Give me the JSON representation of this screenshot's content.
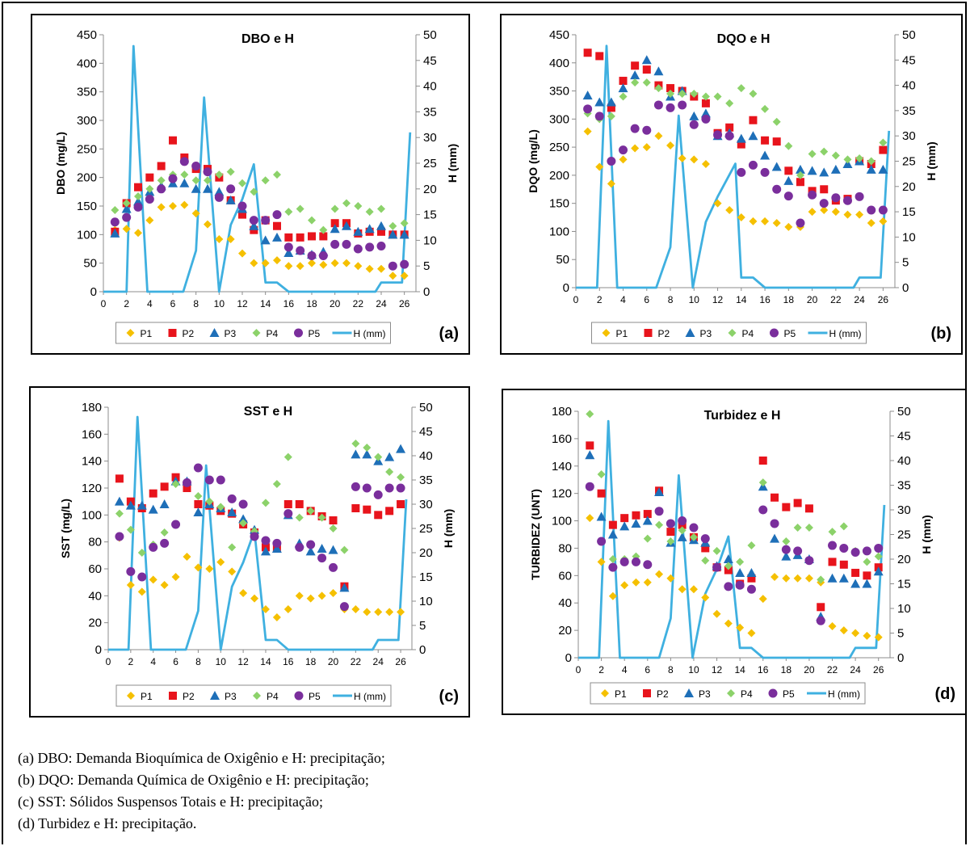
{
  "colors": {
    "P1": "#f5c000",
    "P2": "#e8141c",
    "P3": "#1e6fb8",
    "P4": "#8cd26a",
    "P5": "#7a2e9c",
    "H": "#3fb0e0"
  },
  "legend": [
    "P1",
    "P2",
    "P3",
    "P4",
    "P5",
    "H (mm)"
  ],
  "captions": [
    "(a) DBO: Demanda Bioquímica de Oxigênio e H: precipitação;",
    "(b) DQO: Demanda Química de Oxigênio e H: precipitação;",
    "(c) SST: Sólidos Suspensos Totais e H: precipitação;",
    "(d) Turbidez e H: precipitação."
  ],
  "chart_data": [
    {
      "type": "scatter",
      "panel_label": "(a)",
      "title": "DBO e H",
      "ylabel": "DBO (mg/L)",
      "y2label": "H (mm)",
      "xlim": [
        0,
        27
      ],
      "xticks": [
        0,
        2,
        4,
        6,
        8,
        10,
        12,
        14,
        16,
        18,
        20,
        22,
        24,
        26
      ],
      "ylim": [
        0,
        450
      ],
      "yticks": [
        0,
        50,
        100,
        150,
        200,
        250,
        300,
        350,
        400,
        450
      ],
      "y2lim": [
        0,
        50
      ],
      "y2ticks": [
        0,
        5,
        10,
        15,
        20,
        25,
        30,
        35,
        40,
        45,
        50
      ],
      "x": [
        1,
        2,
        3,
        4,
        5,
        6,
        7,
        8,
        9,
        10,
        11,
        12,
        13,
        14,
        15,
        16,
        17,
        18,
        19,
        20,
        21,
        22,
        23,
        24,
        25,
        26
      ],
      "series": [
        {
          "name": "P1",
          "values": [
            108,
            110,
            103,
            125,
            148,
            150,
            152,
            137,
            118,
            92,
            92,
            67,
            50,
            50,
            55,
            45,
            45,
            50,
            47,
            50,
            50,
            45,
            40,
            40,
            28,
            28
          ]
        },
        {
          "name": "P2",
          "values": [
            105,
            155,
            183,
            200,
            220,
            265,
            235,
            215,
            215,
            200,
            160,
            135,
            108,
            125,
            115,
            95,
            95,
            97,
            97,
            120,
            120,
            102,
            105,
            105,
            100,
            100
          ]
        },
        {
          "name": "P3",
          "values": [
            102,
            145,
            158,
            175,
            185,
            190,
            190,
            180,
            180,
            175,
            160,
            145,
            115,
            90,
            95,
            68,
            72,
            65,
            70,
            110,
            115,
            105,
            110,
            115,
            100,
            100
          ]
        },
        {
          "name": "P4",
          "values": [
            143,
            155,
            167,
            180,
            195,
            205,
            205,
            195,
            195,
            205,
            210,
            190,
            175,
            195,
            205,
            140,
            145,
            125,
            108,
            145,
            155,
            150,
            140,
            145,
            115,
            120
          ]
        },
        {
          "name": "P5",
          "values": [
            122,
            130,
            148,
            162,
            180,
            198,
            228,
            220,
            210,
            165,
            180,
            150,
            125,
            125,
            135,
            78,
            72,
            63,
            63,
            83,
            83,
            75,
            78,
            80,
            45,
            48
          ]
        }
      ],
      "h_series": {
        "name": "H (mm)",
        "x": [
          0,
          2,
          2.6,
          3.8,
          6.9,
          8.0,
          8.7,
          10,
          11,
          12,
          13,
          14,
          15,
          16,
          23.5,
          24,
          25,
          25.8,
          26.5
        ],
        "values": [
          0,
          0,
          47.8,
          0,
          0,
          8,
          37.8,
          0,
          13,
          18,
          24.8,
          1.8,
          1.8,
          0,
          0,
          1.8,
          1.8,
          1.8,
          31
        ]
      }
    },
    {
      "type": "scatter",
      "panel_label": "(b)",
      "title": "DQO e H",
      "ylabel": "DQO (mg/L)",
      "y2label": "H (mm)",
      "xlim": [
        0,
        27
      ],
      "xticks": [
        0,
        2,
        4,
        6,
        8,
        10,
        12,
        14,
        16,
        18,
        20,
        22,
        24,
        26
      ],
      "ylim": [
        0,
        450
      ],
      "yticks": [
        0,
        50,
        100,
        150,
        200,
        250,
        300,
        350,
        400,
        450
      ],
      "y2lim": [
        0,
        50
      ],
      "y2ticks": [
        0,
        5,
        10,
        15,
        20,
        25,
        30,
        35,
        40,
        45,
        50
      ],
      "x": [
        1,
        2,
        3,
        4,
        5,
        6,
        7,
        8,
        9,
        10,
        11,
        12,
        13,
        14,
        15,
        16,
        17,
        18,
        19,
        20,
        21,
        22,
        23,
        24,
        25,
        26
      ],
      "series": [
        {
          "name": "P1",
          "values": [
            278,
            215,
            185,
            228,
            248,
            250,
            270,
            253,
            230,
            228,
            220,
            150,
            138,
            125,
            118,
            118,
            115,
            108,
            108,
            135,
            138,
            135,
            130,
            130,
            115,
            118
          ]
        },
        {
          "name": "P2",
          "values": [
            418,
            412,
            320,
            368,
            395,
            388,
            360,
            355,
            350,
            340,
            328,
            275,
            285,
            255,
            298,
            262,
            260,
            208,
            188,
            172,
            175,
            155,
            158,
            225,
            220,
            245
          ]
        },
        {
          "name": "P3",
          "values": [
            342,
            330,
            330,
            355,
            378,
            405,
            385,
            340,
            350,
            305,
            310,
            270,
            275,
            265,
            270,
            235,
            215,
            190,
            210,
            208,
            205,
            210,
            220,
            225,
            210,
            210
          ]
        },
        {
          "name": "P4",
          "values": [
            310,
            300,
            305,
            340,
            365,
            365,
            355,
            345,
            345,
            345,
            340,
            340,
            328,
            355,
            345,
            318,
            295,
            252,
            200,
            238,
            242,
            235,
            228,
            230,
            225,
            258
          ]
        },
        {
          "name": "P5",
          "values": [
            318,
            305,
            225,
            245,
            283,
            280,
            325,
            320,
            325,
            290,
            300,
            272,
            270,
            205,
            218,
            205,
            175,
            163,
            115,
            165,
            150,
            160,
            155,
            162,
            138,
            138
          ]
        }
      ],
      "h_series": {
        "name": "H (mm)",
        "x": [
          0,
          1.8,
          2.6,
          3.5,
          6.8,
          8.0,
          8.7,
          9.9,
          11,
          12,
          13.5,
          14,
          15,
          16,
          23.5,
          24,
          25,
          25.8,
          26.5
        ],
        "values": [
          0,
          0,
          47.8,
          0,
          0,
          8,
          34,
          0,
          13,
          18,
          24.5,
          2,
          2,
          0,
          0,
          2,
          2,
          2,
          31
        ]
      }
    },
    {
      "type": "scatter",
      "panel_label": "(c)",
      "title": "SST e H",
      "ylabel": "SST (mg/L)",
      "y2label": "H (mm)",
      "xlim": [
        0,
        27
      ],
      "xticks": [
        0,
        2,
        4,
        6,
        8,
        10,
        12,
        14,
        16,
        18,
        20,
        22,
        24,
        26
      ],
      "ylim": [
        0,
        180
      ],
      "yticks": [
        0,
        20,
        40,
        60,
        80,
        100,
        120,
        140,
        160,
        180
      ],
      "y2lim": [
        0,
        50
      ],
      "y2ticks": [
        0,
        5,
        10,
        15,
        20,
        25,
        30,
        35,
        40,
        45,
        50
      ],
      "x": [
        1,
        2,
        3,
        4,
        5,
        6,
        7,
        8,
        9,
        10,
        11,
        12,
        13,
        14,
        15,
        16,
        17,
        18,
        19,
        20,
        21,
        22,
        23,
        24,
        25,
        26
      ],
      "series": [
        {
          "name": "P1",
          "values": [
            83,
            48,
            43,
            52,
            48,
            54,
            69,
            61,
            60,
            65,
            58,
            42,
            38,
            30,
            24,
            30,
            40,
            38,
            40,
            42,
            30,
            30,
            28,
            28,
            28,
            28
          ]
        },
        {
          "name": "P2",
          "values": [
            127,
            110,
            105,
            116,
            121,
            128,
            120,
            108,
            107,
            103,
            101,
            93,
            87,
            76,
            76,
            108,
            108,
            103,
            99,
            96,
            47,
            105,
            104,
            100,
            103,
            108
          ]
        },
        {
          "name": "P3",
          "values": [
            110,
            107,
            107,
            104,
            108,
            125,
            125,
            102,
            108,
            105,
            102,
            97,
            89,
            73,
            75,
            100,
            79,
            73,
            75,
            74,
            46,
            145,
            145,
            140,
            143,
            149
          ]
        },
        {
          "name": "P4",
          "values": [
            101,
            89,
            72,
            78,
            87,
            123,
            124,
            114,
            110,
            106,
            76,
            94,
            88,
            109,
            123,
            143,
            98,
            103,
            98,
            90,
            74,
            153,
            150,
            143,
            132,
            128
          ]
        },
        {
          "name": "P5",
          "values": [
            84,
            58,
            54,
            76,
            79,
            93,
            124,
            135,
            126,
            126,
            112,
            108,
            84,
            81,
            79,
            101,
            76,
            78,
            68,
            61,
            32,
            121,
            120,
            115,
            120,
            120
          ]
        }
      ],
      "h_series": {
        "name": "H (mm)",
        "x": [
          0,
          1.8,
          2.6,
          3.8,
          6.9,
          8.0,
          8.7,
          10,
          11,
          12,
          13,
          14,
          15,
          16,
          23.5,
          24,
          25,
          25.8,
          26.5
        ],
        "values": [
          0,
          0,
          48,
          0,
          0,
          8,
          38,
          0,
          13,
          18,
          24.5,
          2,
          2,
          0,
          0,
          2,
          2,
          2,
          31
        ]
      }
    },
    {
      "type": "scatter",
      "panel_label": "(d)",
      "title": "Turbidez e H",
      "ylabel": "TURBIDEZ (UNT)",
      "y2label": "H (mm)",
      "xlim": [
        0,
        27
      ],
      "xticks": [
        0,
        2,
        4,
        6,
        8,
        10,
        12,
        14,
        16,
        18,
        20,
        22,
        24,
        26
      ],
      "ylim": [
        0,
        180
      ],
      "yticks": [
        0,
        20,
        40,
        60,
        80,
        100,
        120,
        140,
        160,
        180
      ],
      "y2lim": [
        0,
        50
      ],
      "y2ticks": [
        0,
        5,
        10,
        15,
        20,
        25,
        30,
        35,
        40,
        45,
        50
      ],
      "x": [
        1,
        2,
        3,
        4,
        5,
        6,
        7,
        8,
        9,
        10,
        11,
        12,
        13,
        14,
        15,
        16,
        17,
        18,
        19,
        20,
        21,
        22,
        23,
        24,
        25,
        26
      ],
      "series": [
        {
          "name": "P1",
          "values": [
            102,
            70,
            45,
            53,
            55,
            55,
            61,
            58,
            50,
            50,
            44,
            32,
            25,
            22,
            18,
            43,
            59,
            58,
            58,
            58,
            55,
            23,
            20,
            18,
            16,
            15
          ]
        },
        {
          "name": "P2",
          "values": [
            155,
            120,
            97,
            102,
            104,
            105,
            122,
            92,
            97,
            88,
            80,
            66,
            64,
            54,
            58,
            144,
            117,
            110,
            113,
            109,
            37,
            70,
            68,
            62,
            60,
            66
          ]
        },
        {
          "name": "P3",
          "values": [
            148,
            103,
            90,
            96,
            98,
            100,
            121,
            84,
            88,
            86,
            84,
            67,
            72,
            62,
            62,
            125,
            87,
            74,
            75,
            72,
            30,
            58,
            58,
            54,
            54,
            63
          ]
        },
        {
          "name": "P4",
          "values": [
            178,
            134,
            72,
            72,
            74,
            87,
            97,
            85,
            93,
            88,
            71,
            78,
            67,
            70,
            82,
            128,
            98,
            85,
            95,
            95,
            57,
            92,
            96,
            78,
            70,
            74
          ]
        },
        {
          "name": "P5",
          "values": [
            125,
            85,
            66,
            70,
            70,
            68,
            107,
            98,
            100,
            95,
            87,
            66,
            52,
            53,
            50,
            108,
            98,
            79,
            78,
            71,
            27,
            82,
            80,
            77,
            78,
            80
          ]
        }
      ],
      "h_series": {
        "name": "H (mm)",
        "x": [
          0,
          1.8,
          2.6,
          3.6,
          7.0,
          8.0,
          8.7,
          9.9,
          11,
          12,
          13,
          14,
          15,
          16,
          23.5,
          24,
          25,
          25.8,
          26.5
        ],
        "values": [
          0,
          0,
          48,
          0,
          0,
          8,
          37,
          0,
          13,
          18,
          24.6,
          2,
          2,
          0,
          0,
          2,
          2,
          2,
          31
        ]
      }
    }
  ]
}
